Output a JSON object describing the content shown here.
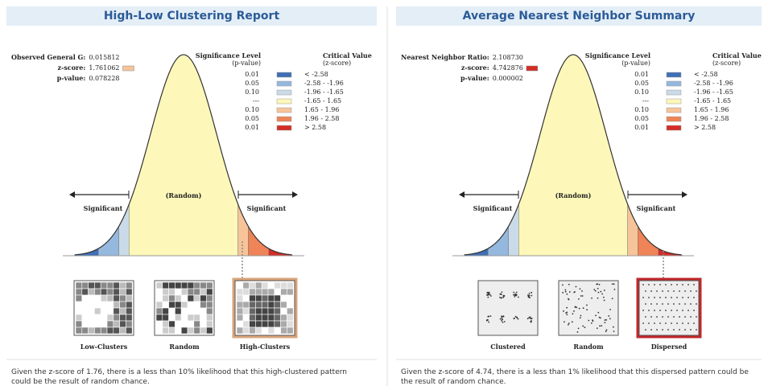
{
  "panels": [
    {
      "title": "High-Low Clustering Report",
      "stats": [
        {
          "label": "Observed General G:",
          "value": "0.015812"
        },
        {
          "label": "z-score:",
          "value": "1.761062"
        },
        {
          "label": "p-value:",
          "value": "0.078228"
        }
      ],
      "legend": {
        "headers": [
          [
            "Significance Level",
            "(p-value)"
          ],
          [
            "Critical Value",
            "(z-score)"
          ]
        ],
        "rows": [
          [
            "0.01",
            "< -2.58"
          ],
          [
            "0.05",
            "-2.58 - -1.96"
          ],
          [
            "0.10",
            "-1.96 - -1.65"
          ],
          [
            "---",
            "-1.65 - 1.65"
          ],
          [
            "0.10",
            "1.65 - 1.96"
          ],
          [
            "0.05",
            "1.96 - 2.58"
          ],
          [
            "0.01",
            "> 2.58"
          ]
        ]
      },
      "curve_labels": {
        "left": "Significant",
        "center": "(Random)",
        "right": "Significant"
      },
      "patterns": [
        "Low-Clusters",
        "Random",
        "High-Clusters"
      ],
      "description": "Given the z-score of 1.76, there is a less than 10% likelihood that this high-clustered pattern could be the result of random chance."
    },
    {
      "title": "Average Nearest Neighbor Summary",
      "stats": [
        {
          "label": "Nearest Neighbor Ratio:",
          "value": "2.108730"
        },
        {
          "label": "z-score:",
          "value": "4.742876"
        },
        {
          "label": "p-value:",
          "value": "0.000002"
        }
      ],
      "legend": {
        "headers": [
          [
            "Significance Level",
            "(p-value)"
          ],
          [
            "Critical Value",
            "(z-score)"
          ]
        ],
        "rows": [
          [
            "0.01",
            "< -2.58"
          ],
          [
            "0.05",
            "-2.58 - -1.96"
          ],
          [
            "0.10",
            "-1.96 - -1.65"
          ],
          [
            "---",
            "-1.65 - 1.65"
          ],
          [
            "0.10",
            "1.65 - 1.96"
          ],
          [
            "0.05",
            "1.96 - 2.58"
          ],
          [
            "0.01",
            "> 2.58"
          ]
        ]
      },
      "curve_labels": {
        "left": "Significant",
        "center": "(Random)",
        "right": "Significant"
      },
      "patterns": [
        "Clustered",
        "Random",
        "Dispersed"
      ],
      "description": "Given the z-score of 4.74, there is a less than 1% likelihood that this dispersed pattern could be the result of random chance."
    }
  ]
}
